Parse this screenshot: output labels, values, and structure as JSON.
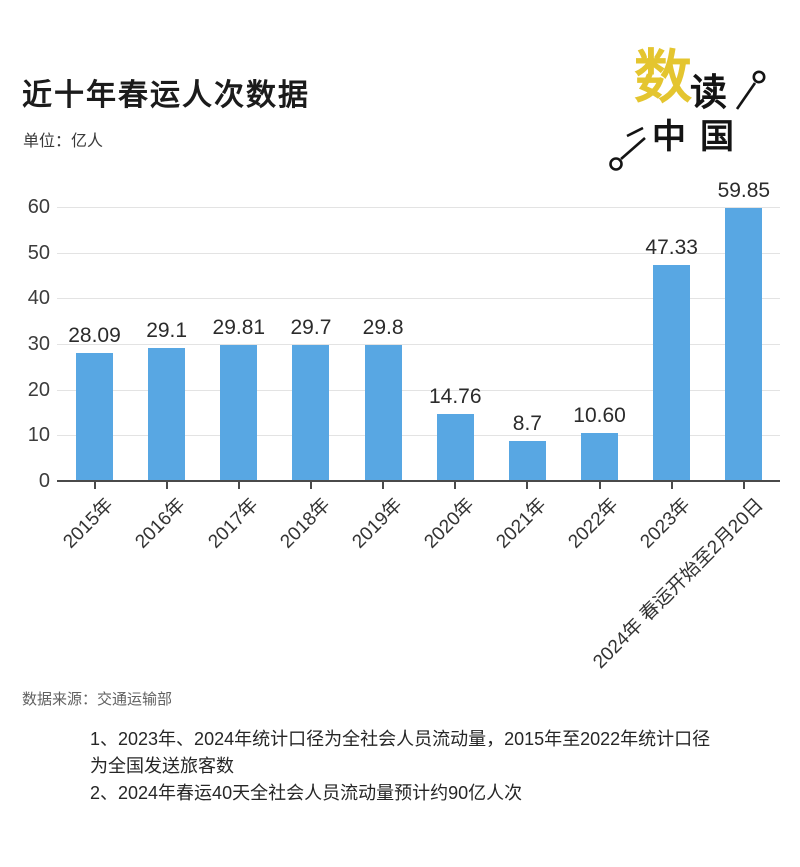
{
  "header": {
    "title": "近十年春运人次数据",
    "unit_label": "单位：亿人"
  },
  "logo": {
    "char_big": "数",
    "char_small": "读",
    "chars_bottom": "中国",
    "accent_color": "#e4c52f",
    "ink_color": "#141414"
  },
  "chart_data": {
    "type": "bar",
    "title": "近十年春运人次数据",
    "unit": "亿人",
    "categories": [
      "2015年",
      "2016年",
      "2017年",
      "2018年",
      "2019年",
      "2020年",
      "2021年",
      "2022年",
      "2023年",
      "2024年 春运开始至2月20日"
    ],
    "values": [
      28.09,
      29.1,
      29.81,
      29.7,
      29.8,
      14.76,
      8.7,
      10.6,
      47.33,
      59.85
    ],
    "value_labels": [
      "28.09",
      "29.1",
      "29.81",
      "29.7",
      "29.8",
      "14.76",
      "8.7",
      "10.60",
      "47.33",
      "59.85"
    ],
    "y_ticks": [
      0,
      10,
      20,
      30,
      40,
      50,
      60
    ],
    "ylim": [
      0,
      60
    ],
    "grid": true,
    "legend": "none",
    "bar_color": "#58a7e3"
  },
  "footer": {
    "source": "数据来源：交通运输部",
    "note_lines": [
      "1、2023年、2024年统计口径为全社会人员流动量，2015年至2022年统计口径",
      "为全国发送旅客数",
      "2、2024年春运40天全社会人员流动量预计约90亿人次"
    ]
  }
}
